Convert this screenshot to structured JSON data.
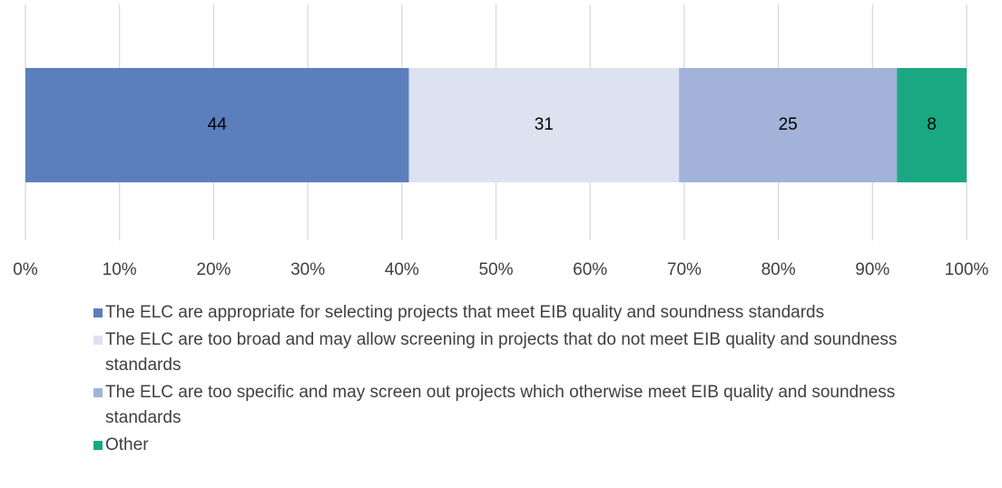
{
  "chart_data": {
    "type": "bar",
    "orientation": "horizontal",
    "stacking": "percent",
    "categories": [
      null
    ],
    "series": [
      {
        "name": "The ELC are appropriate for selecting projects that meet EIB quality and soundness standards",
        "color": "#5b7fbd",
        "values": [
          44
        ]
      },
      {
        "name": "The ELC are too broad and may allow screening in projects that do not meet EIB quality and soundness standards",
        "color": "#dde2f0",
        "values": [
          31
        ]
      },
      {
        "name": "The ELC are too specific and may screen out projects which otherwise meet EIB quality and soundness standards",
        "color": "#a3b2d8",
        "values": [
          25
        ]
      },
      {
        "name": "Other",
        "color": "#1aa882",
        "values": [
          8
        ]
      }
    ],
    "xlim": [
      0,
      100
    ],
    "xticks": [
      {
        "value": 0,
        "label": "0%"
      },
      {
        "value": 10,
        "label": "10%"
      },
      {
        "value": 20,
        "label": "20%"
      },
      {
        "value": 30,
        "label": "30%"
      },
      {
        "value": 40,
        "label": "40%"
      },
      {
        "value": 50,
        "label": "50%"
      },
      {
        "value": 60,
        "label": "60%"
      },
      {
        "value": 70,
        "label": "70%"
      },
      {
        "value": 80,
        "label": "80%"
      },
      {
        "value": 90,
        "label": "90%"
      },
      {
        "value": 100,
        "label": "100%"
      }
    ],
    "grid": true,
    "legend": "bottom"
  }
}
